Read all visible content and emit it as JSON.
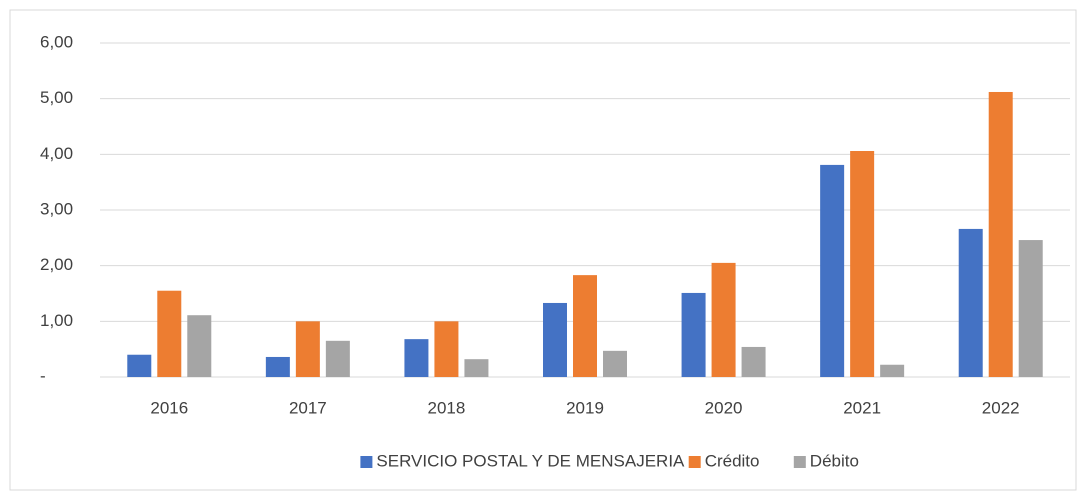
{
  "chart_data": {
    "type": "bar",
    "categories": [
      "2016",
      "2017",
      "2018",
      "2019",
      "2020",
      "2021",
      "2022"
    ],
    "series": [
      {
        "name": "SERVICIO POSTAL Y DE MENSAJERIA",
        "color": "#4472c4",
        "values": [
          0.4,
          0.36,
          0.68,
          1.33,
          1.51,
          3.81,
          2.66
        ]
      },
      {
        "name": "Crédito",
        "color": "#ed7d31",
        "values": [
          1.55,
          1.0,
          1.0,
          1.83,
          2.05,
          4.06,
          5.12
        ]
      },
      {
        "name": "Débito",
        "color": "#a5a5a5",
        "values": [
          1.11,
          0.65,
          0.32,
          0.47,
          0.54,
          0.22,
          2.46
        ]
      }
    ],
    "ylim": [
      0,
      6
    ],
    "yticks": [
      {
        "value": 0,
        "label": "-"
      },
      {
        "value": 1,
        "label": "1,00"
      },
      {
        "value": 2,
        "label": "2,00"
      },
      {
        "value": 3,
        "label": "3,00"
      },
      {
        "value": 4,
        "label": "4,00"
      },
      {
        "value": 5,
        "label": "5,00"
      },
      {
        "value": 6,
        "label": "6,00"
      }
    ],
    "grid": true,
    "legend": "bottom"
  }
}
